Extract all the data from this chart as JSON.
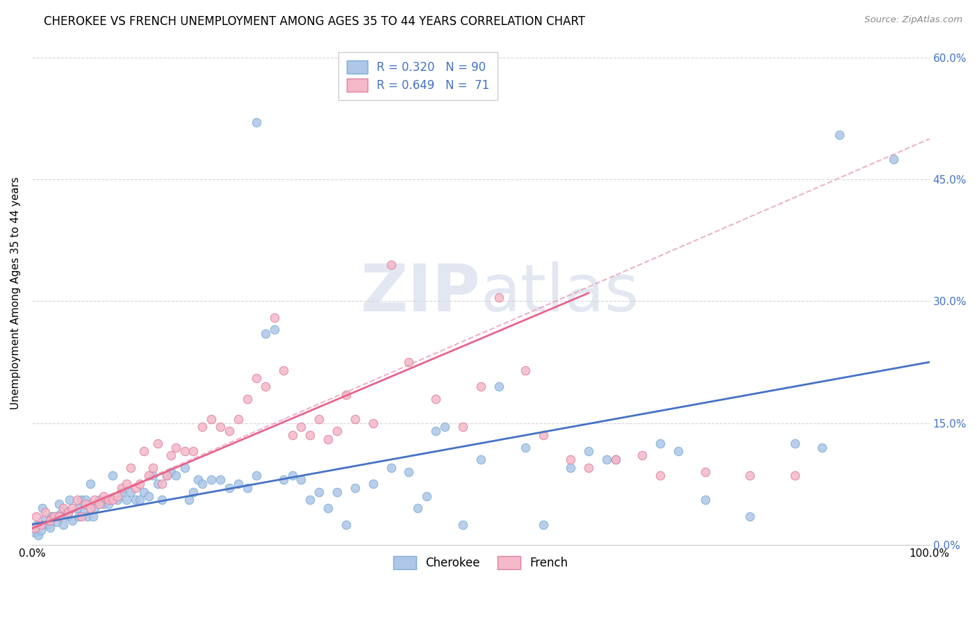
{
  "title": "CHEROKEE VS FRENCH UNEMPLOYMENT AMONG AGES 35 TO 44 YEARS CORRELATION CHART",
  "source": "Source: ZipAtlas.com",
  "ylabel": "Unemployment Among Ages 35 to 44 years",
  "xlim": [
    0,
    100
  ],
  "ylim": [
    0,
    62
  ],
  "ytick_labels": [
    "0.0%",
    "15.0%",
    "30.0%",
    "45.0%",
    "60.0%"
  ],
  "ytick_values": [
    0,
    15,
    30,
    45,
    60
  ],
  "cherokee_color": "#aec6e8",
  "cherokee_edge": "#7bafd4",
  "french_color": "#f4b8c8",
  "french_edge": "#e080a0",
  "cherokee_line_color": "#4472c4",
  "french_line_color": "#e8638a",
  "french_dashed_color": "#e8a0b8",
  "watermark_zip": "ZIP",
  "watermark_atlas": "atlas",
  "cherokee_scatter": [
    [
      0.3,
      1.5
    ],
    [
      0.5,
      2.4
    ],
    [
      0.7,
      1.2
    ],
    [
      1.0,
      1.8
    ],
    [
      1.2,
      4.5
    ],
    [
      1.5,
      3.2
    ],
    [
      1.8,
      2.5
    ],
    [
      2.0,
      2.1
    ],
    [
      2.2,
      3.5
    ],
    [
      2.5,
      3.5
    ],
    [
      2.8,
      2.8
    ],
    [
      3.0,
      5.0
    ],
    [
      3.2,
      3.8
    ],
    [
      3.5,
      2.5
    ],
    [
      3.8,
      4.2
    ],
    [
      4.0,
      3.5
    ],
    [
      4.2,
      5.5
    ],
    [
      4.5,
      3.0
    ],
    [
      5.0,
      4.5
    ],
    [
      5.2,
      3.5
    ],
    [
      5.5,
      5.5
    ],
    [
      5.8,
      4.0
    ],
    [
      6.0,
      5.5
    ],
    [
      6.2,
      3.5
    ],
    [
      6.5,
      7.5
    ],
    [
      6.8,
      3.5
    ],
    [
      7.0,
      4.5
    ],
    [
      7.5,
      5.5
    ],
    [
      8.0,
      5.0
    ],
    [
      8.5,
      5.0
    ],
    [
      9.0,
      8.5
    ],
    [
      9.5,
      5.5
    ],
    [
      10.0,
      6.5
    ],
    [
      10.5,
      5.5
    ],
    [
      11.0,
      6.5
    ],
    [
      11.5,
      5.5
    ],
    [
      12.0,
      5.5
    ],
    [
      12.5,
      6.5
    ],
    [
      13.0,
      6.0
    ],
    [
      13.5,
      8.5
    ],
    [
      14.0,
      7.5
    ],
    [
      14.5,
      5.5
    ],
    [
      15.0,
      8.5
    ],
    [
      15.5,
      9.0
    ],
    [
      16.0,
      8.5
    ],
    [
      17.0,
      9.5
    ],
    [
      17.5,
      5.5
    ],
    [
      18.0,
      6.5
    ],
    [
      18.5,
      8.0
    ],
    [
      19.0,
      7.5
    ],
    [
      20.0,
      8.0
    ],
    [
      21.0,
      8.0
    ],
    [
      22.0,
      7.0
    ],
    [
      23.0,
      7.5
    ],
    [
      24.0,
      7.0
    ],
    [
      25.0,
      8.5
    ],
    [
      26.0,
      26.0
    ],
    [
      27.0,
      26.5
    ],
    [
      28.0,
      8.0
    ],
    [
      29.0,
      8.5
    ],
    [
      30.0,
      8.0
    ],
    [
      31.0,
      5.5
    ],
    [
      32.0,
      6.5
    ],
    [
      33.0,
      4.5
    ],
    [
      34.0,
      6.5
    ],
    [
      35.0,
      2.5
    ],
    [
      36.0,
      7.0
    ],
    [
      38.0,
      7.5
    ],
    [
      40.0,
      9.5
    ],
    [
      42.0,
      9.0
    ],
    [
      43.0,
      4.5
    ],
    [
      44.0,
      6.0
    ],
    [
      45.0,
      14.0
    ],
    [
      46.0,
      14.5
    ],
    [
      48.0,
      2.5
    ],
    [
      50.0,
      10.5
    ],
    [
      52.0,
      19.5
    ],
    [
      55.0,
      12.0
    ],
    [
      57.0,
      2.5
    ],
    [
      60.0,
      9.5
    ],
    [
      62.0,
      11.5
    ],
    [
      64.0,
      10.5
    ],
    [
      65.0,
      10.5
    ],
    [
      70.0,
      12.5
    ],
    [
      72.0,
      11.5
    ],
    [
      75.0,
      5.5
    ],
    [
      80.0,
      3.5
    ],
    [
      85.0,
      12.5
    ],
    [
      88.0,
      12.0
    ],
    [
      25.0,
      52.0
    ],
    [
      90.0,
      50.5
    ],
    [
      96.0,
      47.5
    ]
  ],
  "french_scatter": [
    [
      0.3,
      2.0
    ],
    [
      0.5,
      3.5
    ],
    [
      1.0,
      2.5
    ],
    [
      1.5,
      4.0
    ],
    [
      2.0,
      3.0
    ],
    [
      2.5,
      3.5
    ],
    [
      3.0,
      3.5
    ],
    [
      3.5,
      4.5
    ],
    [
      4.0,
      4.0
    ],
    [
      4.5,
      4.5
    ],
    [
      5.0,
      5.5
    ],
    [
      5.5,
      3.5
    ],
    [
      6.0,
      5.0
    ],
    [
      6.5,
      4.5
    ],
    [
      7.0,
      5.5
    ],
    [
      7.5,
      5.0
    ],
    [
      8.0,
      6.0
    ],
    [
      8.5,
      5.5
    ],
    [
      9.0,
      5.5
    ],
    [
      9.5,
      6.0
    ],
    [
      10.0,
      7.0
    ],
    [
      10.5,
      7.5
    ],
    [
      11.0,
      9.5
    ],
    [
      11.5,
      7.0
    ],
    [
      12.0,
      7.5
    ],
    [
      12.5,
      11.5
    ],
    [
      13.0,
      8.5
    ],
    [
      13.5,
      9.5
    ],
    [
      14.0,
      12.5
    ],
    [
      14.5,
      7.5
    ],
    [
      15.0,
      8.5
    ],
    [
      15.5,
      11.0
    ],
    [
      16.0,
      12.0
    ],
    [
      17.0,
      11.5
    ],
    [
      18.0,
      11.5
    ],
    [
      19.0,
      14.5
    ],
    [
      20.0,
      15.5
    ],
    [
      21.0,
      14.5
    ],
    [
      22.0,
      14.0
    ],
    [
      23.0,
      15.5
    ],
    [
      24.0,
      18.0
    ],
    [
      25.0,
      20.5
    ],
    [
      26.0,
      19.5
    ],
    [
      27.0,
      28.0
    ],
    [
      28.0,
      21.5
    ],
    [
      29.0,
      13.5
    ],
    [
      30.0,
      14.5
    ],
    [
      31.0,
      13.5
    ],
    [
      32.0,
      15.5
    ],
    [
      33.0,
      13.0
    ],
    [
      34.0,
      14.0
    ],
    [
      35.0,
      18.5
    ],
    [
      36.0,
      15.5
    ],
    [
      38.0,
      15.0
    ],
    [
      40.0,
      34.5
    ],
    [
      42.0,
      22.5
    ],
    [
      45.0,
      18.0
    ],
    [
      48.0,
      14.5
    ],
    [
      50.0,
      19.5
    ],
    [
      52.0,
      30.5
    ],
    [
      55.0,
      21.5
    ],
    [
      57.0,
      13.5
    ],
    [
      60.0,
      10.5
    ],
    [
      62.0,
      9.5
    ],
    [
      65.0,
      10.5
    ],
    [
      68.0,
      11.0
    ],
    [
      70.0,
      8.5
    ],
    [
      75.0,
      9.0
    ],
    [
      80.0,
      8.5
    ],
    [
      85.0,
      8.5
    ]
  ],
  "cherokee_trendline": [
    [
      0,
      2.5
    ],
    [
      100,
      22.5
    ]
  ],
  "french_trendline_solid": [
    [
      0,
      2.0
    ],
    [
      62,
      31.0
    ]
  ],
  "french_trendline_dashed": [
    [
      0,
      2.0
    ],
    [
      100,
      50.0
    ]
  ]
}
